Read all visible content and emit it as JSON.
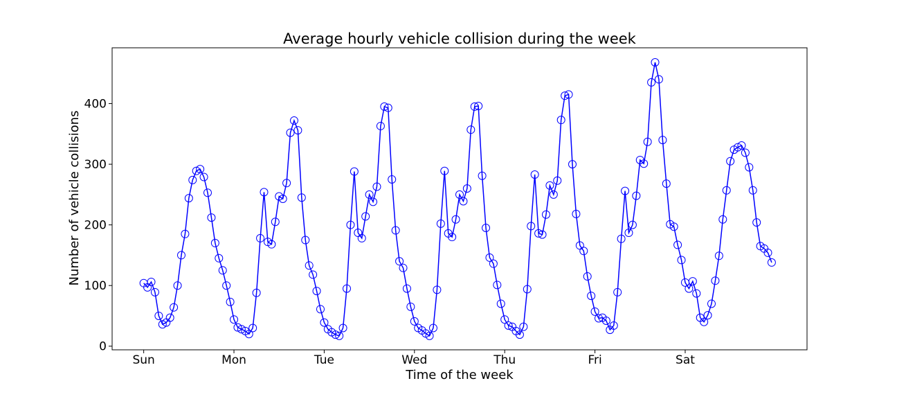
{
  "chart_data": {
    "type": "line",
    "title": "Average hourly vehicle collision during the week",
    "xlabel": "Time of the week",
    "ylabel": "Number of vehicle collisions",
    "xlim": [
      -8.4,
      176.4
    ],
    "ylim": [
      -6,
      492
    ],
    "grid": false,
    "x_ticks": [
      {
        "x": 0,
        "label": "Sun"
      },
      {
        "x": 24,
        "label": "Mon"
      },
      {
        "x": 48,
        "label": "Tue"
      },
      {
        "x": 72,
        "label": "Wed"
      },
      {
        "x": 96,
        "label": "Thu"
      },
      {
        "x": 120,
        "label": "Fri"
      },
      {
        "x": 144,
        "label": "Sat"
      }
    ],
    "y_ticks": [
      0,
      100,
      200,
      300,
      400
    ],
    "series": [
      {
        "color": "#0000ff",
        "marker": "open-circle",
        "values": [
          104,
          97,
          106,
          89,
          50,
          36,
          39,
          47,
          64,
          100,
          150,
          185,
          244,
          274,
          289,
          292,
          279,
          253,
          212,
          170,
          145,
          125,
          100,
          73,
          44,
          31,
          28,
          25,
          20,
          30,
          88,
          178,
          254,
          172,
          168,
          205,
          247,
          243,
          269,
          352,
          372,
          356,
          245,
          175,
          133,
          118,
          91,
          61,
          39,
          28,
          23,
          19,
          17,
          30,
          95,
          200,
          288,
          187,
          178,
          214,
          250,
          238,
          263,
          363,
          395,
          393,
          275,
          191,
          140,
          129,
          95,
          65,
          41,
          30,
          26,
          21,
          17,
          30,
          93,
          202,
          289,
          186,
          180,
          209,
          250,
          239,
          260,
          357,
          395,
          396,
          281,
          195,
          146,
          136,
          101,
          70,
          44,
          34,
          32,
          25,
          19,
          32,
          94,
          198,
          283,
          186,
          184,
          217,
          265,
          250,
          273,
          373,
          413,
          415,
          300,
          218,
          166,
          157,
          115,
          83,
          57,
          46,
          47,
          42,
          27,
          34,
          89,
          177,
          256,
          187,
          200,
          248,
          307,
          301,
          337,
          435,
          468,
          440,
          340,
          268,
          201,
          197,
          167,
          142,
          105,
          95,
          107,
          87,
          47,
          40,
          51,
          70,
          108,
          149,
          209,
          257,
          305,
          324,
          328,
          331,
          319,
          295,
          257,
          204,
          165,
          161,
          154,
          138
        ]
      }
    ]
  }
}
